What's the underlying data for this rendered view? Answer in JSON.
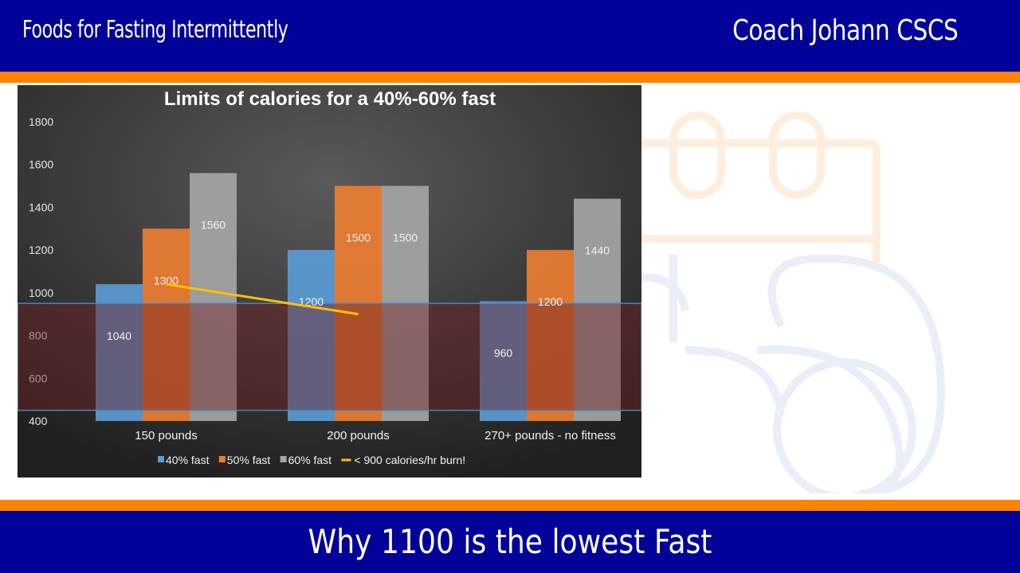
{
  "header": {
    "left_title": "Foods for Fasting Intermittently",
    "right_title": "Coach Johann CSCS"
  },
  "footer": {
    "caption": "Why 1100 is the lowest Fast"
  },
  "colors": {
    "brand_blue": "#020299",
    "brand_orange": "#ff8200",
    "series_40": "#5b9bd5",
    "series_50": "#ed7d31",
    "series_60": "#a5a5a5",
    "burn_line": "#ffc000",
    "burn_band": "#6e1f1f"
  },
  "watermark_icon": "calendar-apple-icon",
  "chart_data": {
    "type": "bar",
    "title": "Limits of calories for a 40%-60% fast",
    "categories": [
      "150 pounds",
      "200 pounds",
      "270+ pounds - no fitness"
    ],
    "ylim": [
      400,
      1800
    ],
    "yticks": [
      400,
      600,
      800,
      1000,
      1200,
      1400,
      1600,
      1800
    ],
    "series": [
      {
        "name": "40% fast",
        "values": [
          1040,
          1200,
          960
        ],
        "color": "#5b9bd5"
      },
      {
        "name": "50% fast",
        "values": [
          1300,
          1500,
          1200
        ],
        "color": "#ed7d31"
      },
      {
        "name": "60% fast",
        "values": [
          1560,
          1500,
          1440
        ],
        "color": "#a5a5a5"
      }
    ],
    "line": {
      "name": "<  900 calories/hr burn!",
      "x": [
        "150 pounds",
        "200 pounds"
      ],
      "y": [
        1040,
        900
      ],
      "color": "#ffc000"
    },
    "band": {
      "from": 450,
      "to": 950
    },
    "legend": "bottom",
    "grid": false
  }
}
